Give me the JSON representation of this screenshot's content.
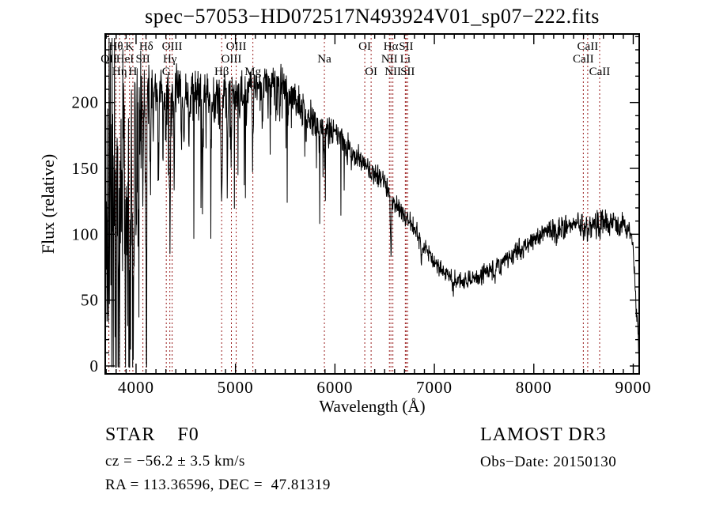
{
  "title": "spec−57053−HD072517N493924V01_sp07−222.fits",
  "annotations": {
    "class_label": "STAR    F0",
    "cz": "cz = −56.2 ± 3.5 km/s",
    "radec": "RA = 113.36596, DEC =  47.81319",
    "survey": "LAMOST DR3",
    "obs_date": "Obs−Date: 20150130"
  },
  "chart_data": {
    "type": "line",
    "title": "spec−57053−HD072517N493924V01_sp07−222.fits",
    "xlabel": "Wavelength (Å)",
    "ylabel": "Flux (relative)",
    "xlim": [
      3690,
      9060
    ],
    "ylim": [
      -6,
      252
    ],
    "xticks": [
      4000,
      5000,
      6000,
      7000,
      8000,
      9000
    ],
    "yticks": [
      0,
      50,
      100,
      150,
      200
    ],
    "x_minor_step": 100,
    "y_minor_step": 10,
    "grid": false,
    "legend": "none",
    "line_color": "#000000",
    "marker_line_color": "#9b2020",
    "spectral_lines": [
      {
        "label": "Hθ",
        "wavelength": 3798,
        "row": 1
      },
      {
        "label": "K",
        "wavelength": 3934,
        "row": 1
      },
      {
        "label": "Hδ",
        "wavelength": 4102,
        "row": 1
      },
      {
        "label": "OIII",
        "wavelength": 4363,
        "row": 1
      },
      {
        "label": "OIII",
        "wavelength": 5007,
        "row": 1
      },
      {
        "label": "OI",
        "wavelength": 6300,
        "row": 1
      },
      {
        "label": "Hα",
        "wavelength": 6563,
        "row": 1
      },
      {
        "label": "SII",
        "wavelength": 6716,
        "row": 1
      },
      {
        "label": "CaII",
        "wavelength": 8542,
        "row": 1
      },
      {
        "label": "OII",
        "wavelength": 3727,
        "row": 2
      },
      {
        "label": "HeI",
        "wavelength": 3889,
        "row": 2
      },
      {
        "label": "SII",
        "wavelength": 4069,
        "row": 2
      },
      {
        "label": "Hγ",
        "wavelength": 4340,
        "row": 2
      },
      {
        "label": "OIII",
        "wavelength": 4959,
        "row": 2
      },
      {
        "label": "Na",
        "wavelength": 5894,
        "row": 2
      },
      {
        "label": "NII",
        "wavelength": 6548,
        "row": 2
      },
      {
        "label": "Li",
        "wavelength": 6708,
        "row": 2
      },
      {
        "label": "CaII",
        "wavelength": 8498,
        "row": 2
      },
      {
        "label": "Hη",
        "wavelength": 3835,
        "row": 3
      },
      {
        "label": "H",
        "wavelength": 3968,
        "row": 3
      },
      {
        "label": "G",
        "wavelength": 4304,
        "row": 3
      },
      {
        "label": "Hβ",
        "wavelength": 4861,
        "row": 3
      },
      {
        "label": "Mg",
        "wavelength": 5175,
        "row": 3
      },
      {
        "label": "OI",
        "wavelength": 6364,
        "row": 3
      },
      {
        "label": "NII",
        "wavelength": 6583,
        "row": 3
      },
      {
        "label": "SII",
        "wavelength": 6731,
        "row": 3
      },
      {
        "label": "CaII",
        "wavelength": 8662,
        "row": 3
      }
    ],
    "continuum": [
      [
        3690,
        110
      ],
      [
        3710,
        150
      ],
      [
        3730,
        170
      ],
      [
        3760,
        185
      ],
      [
        3800,
        193
      ],
      [
        3850,
        199
      ],
      [
        3900,
        203
      ],
      [
        3960,
        205
      ],
      [
        4020,
        206
      ],
      [
        4080,
        208
      ],
      [
        4150,
        209
      ],
      [
        4250,
        210
      ],
      [
        4350,
        210
      ],
      [
        4450,
        211
      ],
      [
        4550,
        209
      ],
      [
        4650,
        206
      ],
      [
        4750,
        204
      ],
      [
        4850,
        204
      ],
      [
        4950,
        207
      ],
      [
        5050,
        209
      ],
      [
        5150,
        212
      ],
      [
        5250,
        215
      ],
      [
        5350,
        218
      ],
      [
        5430,
        217
      ],
      [
        5520,
        211
      ],
      [
        5600,
        203
      ],
      [
        5700,
        194
      ],
      [
        5800,
        186
      ],
      [
        5900,
        181
      ],
      [
        6000,
        177
      ],
      [
        6100,
        170
      ],
      [
        6200,
        161
      ],
      [
        6300,
        152
      ],
      [
        6400,
        146
      ],
      [
        6500,
        137
      ],
      [
        6600,
        124
      ],
      [
        6700,
        114
      ],
      [
        6800,
        104
      ],
      [
        6900,
        90
      ],
      [
        7000,
        79
      ],
      [
        7100,
        71
      ],
      [
        7200,
        66
      ],
      [
        7300,
        64
      ],
      [
        7400,
        66
      ],
      [
        7500,
        70
      ],
      [
        7600,
        74
      ],
      [
        7700,
        79
      ],
      [
        7800,
        85
      ],
      [
        7900,
        91
      ],
      [
        8000,
        96
      ],
      [
        8100,
        101
      ],
      [
        8200,
        103
      ],
      [
        8300,
        105
      ],
      [
        8400,
        106
      ],
      [
        8500,
        107
      ],
      [
        8600,
        106
      ],
      [
        8700,
        109
      ],
      [
        8800,
        110
      ],
      [
        8900,
        108
      ],
      [
        8960,
        104
      ],
      [
        9000,
        92
      ],
      [
        9030,
        40
      ],
      [
        9060,
        10
      ]
    ],
    "noise_sigma": [
      [
        3690,
        80
      ],
      [
        3740,
        75
      ],
      [
        3790,
        68
      ],
      [
        3840,
        60
      ],
      [
        3890,
        52
      ],
      [
        3940,
        45
      ],
      [
        3990,
        34
      ],
      [
        4040,
        26
      ],
      [
        4100,
        20
      ],
      [
        4200,
        15
      ],
      [
        4350,
        13
      ],
      [
        4500,
        12
      ],
      [
        4700,
        11
      ],
      [
        4900,
        10.5
      ],
      [
        5100,
        10
      ],
      [
        5300,
        9
      ],
      [
        5500,
        8
      ],
      [
        5700,
        7.5
      ],
      [
        5900,
        7
      ],
      [
        6100,
        6.5
      ],
      [
        6400,
        5.5
      ],
      [
        6700,
        5
      ],
      [
        7000,
        4.5
      ],
      [
        7300,
        4
      ],
      [
        7600,
        4.5
      ],
      [
        7900,
        5
      ],
      [
        8200,
        5.5
      ],
      [
        8500,
        6
      ],
      [
        8800,
        6.5
      ],
      [
        9060,
        5
      ]
    ],
    "absorption_lines": [
      [
        3727,
        70,
        5
      ],
      [
        3750,
        130,
        5
      ],
      [
        3771,
        150,
        5
      ],
      [
        3798,
        170,
        6
      ],
      [
        3820,
        110,
        4
      ],
      [
        3835,
        180,
        6
      ],
      [
        3860,
        130,
        4
      ],
      [
        3889,
        190,
        6
      ],
      [
        3912,
        100,
        4
      ],
      [
        3934,
        205,
        7
      ],
      [
        3969,
        195,
        7
      ],
      [
        4001,
        90,
        4
      ],
      [
        4026,
        80,
        4
      ],
      [
        4069,
        70,
        4
      ],
      [
        4102,
        120,
        6
      ],
      [
        4144,
        60,
        4
      ],
      [
        4173,
        50,
        4
      ],
      [
        4227,
        60,
        4
      ],
      [
        4271,
        45,
        4
      ],
      [
        4300,
        55,
        5
      ],
      [
        4340,
        95,
        6
      ],
      [
        4383,
        65,
        4
      ],
      [
        4457,
        40,
        4
      ],
      [
        4481,
        50,
        4
      ],
      [
        4531,
        40,
        4
      ],
      [
        4583,
        35,
        4
      ],
      [
        4668,
        40,
        4
      ],
      [
        4755,
        30,
        4
      ],
      [
        4861,
        78,
        6
      ],
      [
        4920,
        45,
        4
      ],
      [
        4957,
        40,
        4
      ],
      [
        5041,
        32,
        4
      ],
      [
        5110,
        28,
        4
      ],
      [
        5175,
        55,
        5
      ],
      [
        5270,
        35,
        4
      ],
      [
        5328,
        28,
        4
      ],
      [
        5406,
        25,
        4
      ],
      [
        5446,
        28,
        4
      ],
      [
        5528,
        22,
        4
      ],
      [
        5711,
        18,
        4
      ],
      [
        5894,
        32,
        4
      ],
      [
        6122,
        14,
        4
      ],
      [
        6163,
        12,
        4
      ],
      [
        6563,
        46,
        5
      ],
      [
        6870,
        14,
        7
      ],
      [
        7190,
        8,
        6
      ],
      [
        7605,
        10,
        7
      ],
      [
        8230,
        8,
        5
      ],
      [
        8498,
        10,
        4
      ],
      [
        8542,
        12,
        4
      ],
      [
        8662,
        12,
        4
      ]
    ],
    "sample_step": 3,
    "seed": 13
  }
}
